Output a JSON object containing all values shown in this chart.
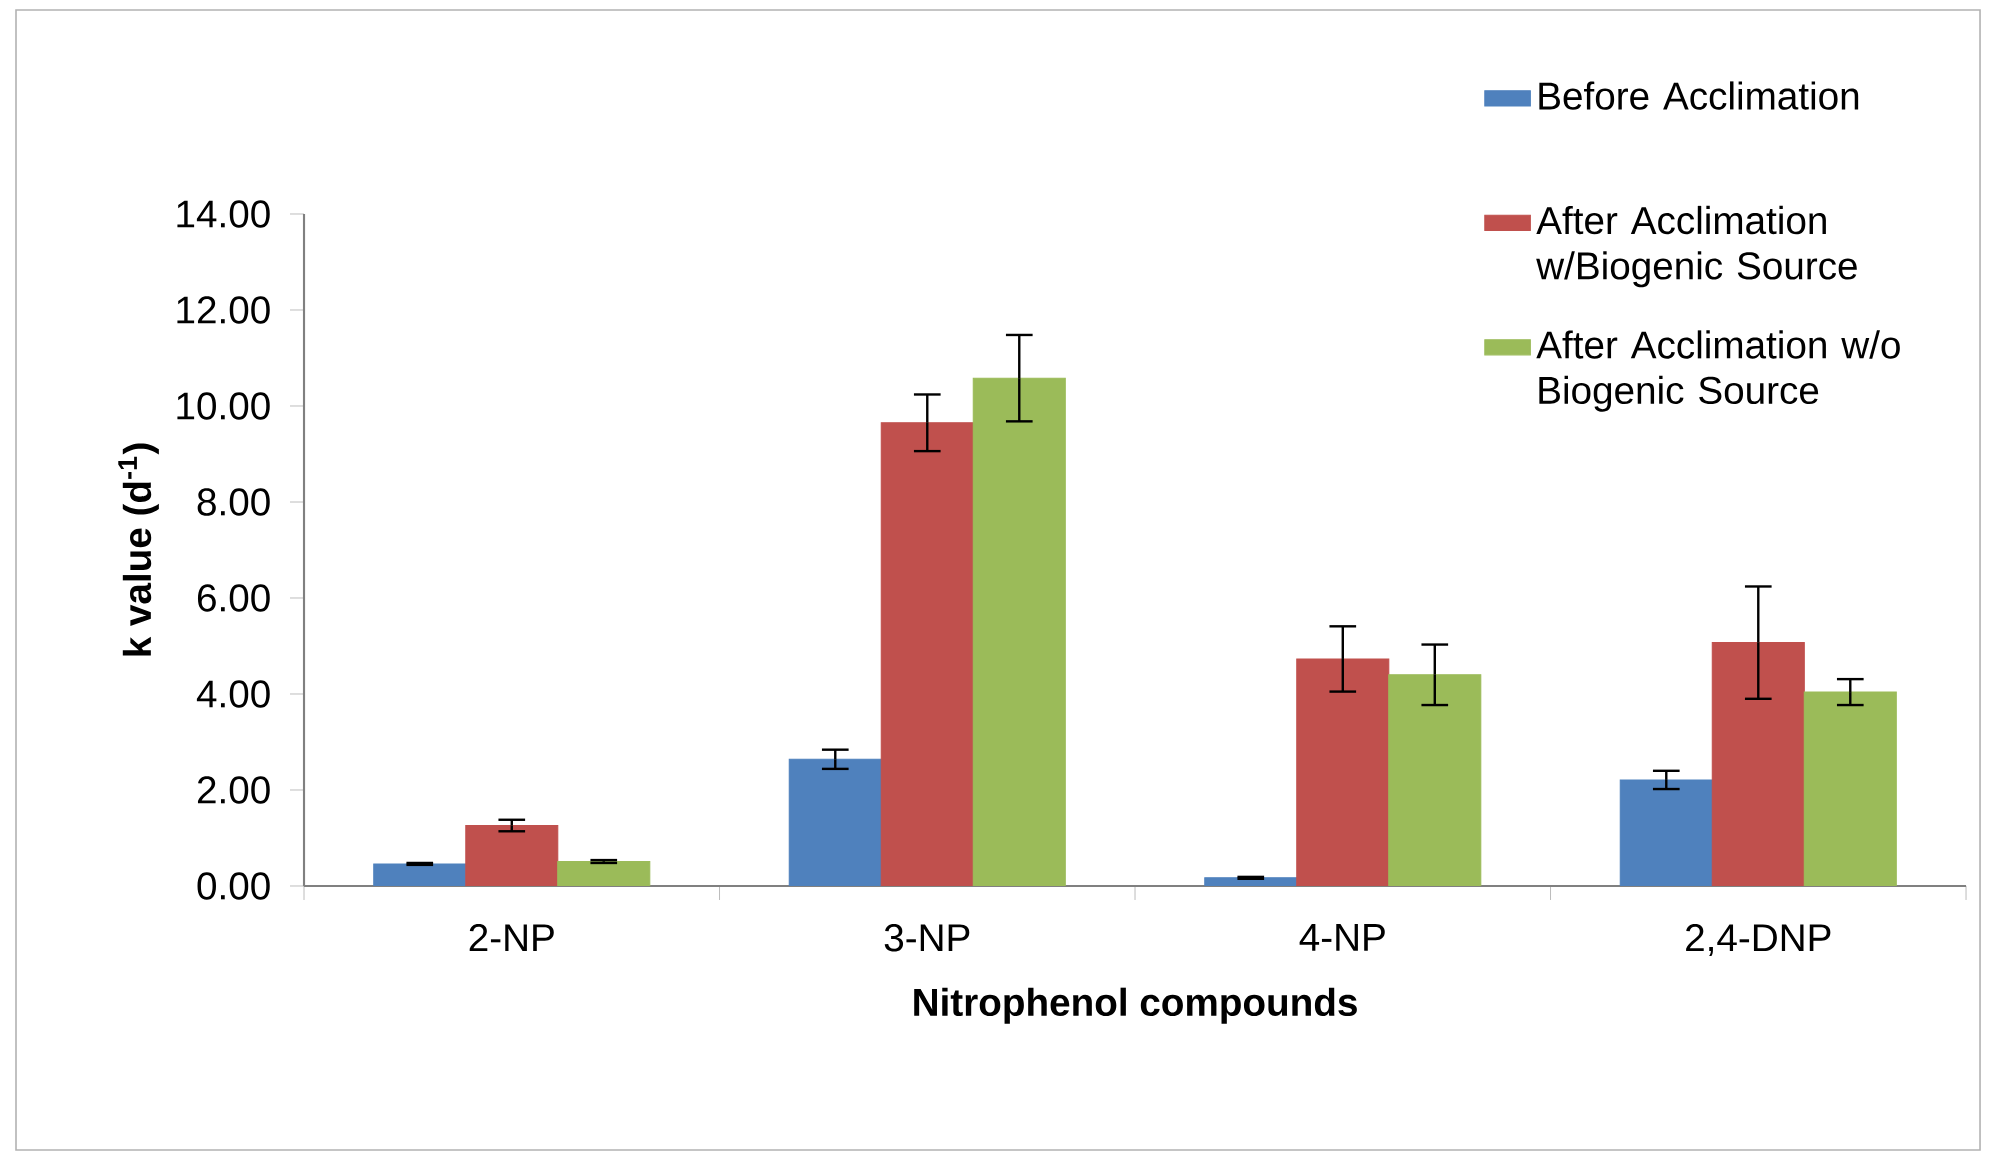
{
  "chart_data": {
    "type": "bar",
    "xlabel": "Nitrophenol compounds",
    "ylabel": "k value (d$^{-1}$)",
    "categories": [
      "2-NP",
      "3-NP",
      "4-NP",
      "2,4-DNP"
    ],
    "series": [
      {
        "name": "Before Acclimation",
        "color": "#4f81bd",
        "values": [
          0.46,
          2.64,
          0.17,
          2.21
        ],
        "errors": [
          0.02,
          0.2,
          0.02,
          0.19
        ]
      },
      {
        "name": "After Acclimation w/Biogenic Source",
        "color": "#c0504d",
        "values": [
          1.26,
          9.65,
          4.73,
          5.07
        ],
        "errors": [
          0.12,
          0.59,
          0.68,
          1.17
        ]
      },
      {
        "name": "After Acclimation w/o Biogenic Source",
        "color": "#9bbb59",
        "values": [
          0.51,
          10.58,
          4.4,
          4.04
        ],
        "errors": [
          0.03,
          0.9,
          0.63,
          0.27
        ]
      }
    ],
    "ylim": [
      0,
      14
    ],
    "yticks": [
      {
        "value": 0,
        "label": "0.00"
      },
      {
        "value": 2,
        "label": "2.00"
      },
      {
        "value": 4,
        "label": "4.00"
      },
      {
        "value": 6,
        "label": "6.00"
      },
      {
        "value": 8,
        "label": "8.00"
      },
      {
        "value": 10,
        "label": "10.00"
      },
      {
        "value": 12,
        "label": "12.00"
      },
      {
        "value": 14,
        "label": "14.00"
      }
    ],
    "legend": "top right"
  }
}
